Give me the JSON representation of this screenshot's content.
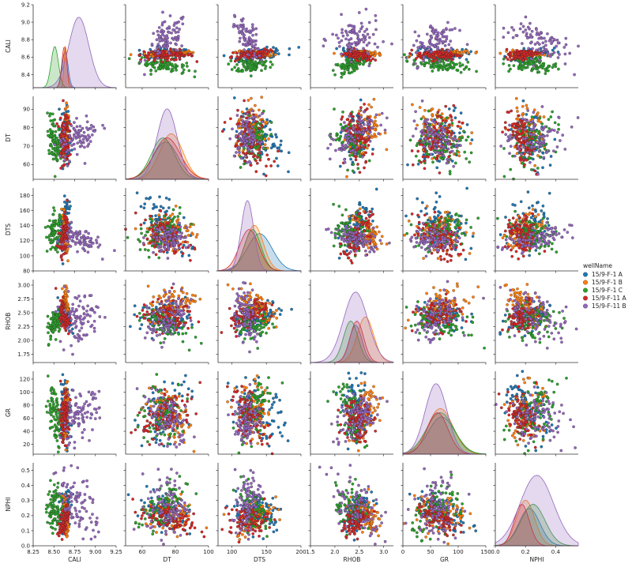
{
  "chart_data": {
    "type": "scatter",
    "kind": "pairplot",
    "variables": [
      "CALI",
      "DT",
      "DTS",
      "RHOB",
      "GR",
      "NPHI"
    ],
    "diagonal": "kde",
    "legend": {
      "title": "wellName",
      "placement": "right",
      "entries": [
        {
          "name": "15/9-F-1 A",
          "color": "#1f77b4"
        },
        {
          "name": "15/9-F-1 B",
          "color": "#ff7f0e"
        },
        {
          "name": "15/9-F-1 C",
          "color": "#2ca02c"
        },
        {
          "name": "15/9-F-11 A",
          "color": "#d62728"
        },
        {
          "name": "15/9-F-11 B",
          "color": "#9467bd"
        }
      ]
    },
    "axes": {
      "CALI": {
        "range": [
          8.25,
          9.25
        ],
        "ticks": [
          "8.25",
          "8.50",
          "8.75",
          "9.00",
          "9.25"
        ],
        "y_ticks": [
          "8.4",
          "8.6",
          "8.8",
          "9.0",
          "9.2"
        ],
        "y_tick_values": [
          8.4,
          8.6,
          8.8,
          9.0,
          9.2
        ],
        "x_tick_values": [
          8.25,
          8.5,
          8.75,
          9.0,
          9.25
        ],
        "y_range": [
          8.25,
          9.2
        ]
      },
      "DT": {
        "range": [
          50,
          100
        ],
        "ticks": [
          "60",
          "80",
          "100"
        ],
        "tick_values": [
          60,
          80,
          100
        ],
        "y_ticks": [
          "60",
          "70",
          "80",
          "90"
        ],
        "y_tick_values": [
          60,
          70,
          80,
          90
        ],
        "y_range": [
          52,
          97
        ]
      },
      "DTS": {
        "range": [
          80,
          200
        ],
        "ticks": [
          "100",
          "150",
          "200"
        ],
        "tick_values": [
          100,
          150,
          200
        ],
        "y_ticks": [
          "80",
          "100",
          "120",
          "140",
          "160",
          "180"
        ],
        "y_tick_values": [
          80,
          100,
          120,
          140,
          160,
          180
        ],
        "y_range": [
          80,
          190
        ]
      },
      "RHOB": {
        "range": [
          1.5,
          3.2
        ],
        "ticks": [
          "1.5",
          "2.0",
          "2.5",
          "3.0"
        ],
        "tick_values": [
          1.5,
          2.0,
          2.5,
          3.0
        ],
        "y_ticks": [
          "1.75",
          "2.00",
          "2.25",
          "2.50",
          "2.75",
          "3.00"
        ],
        "y_tick_values": [
          1.75,
          2.0,
          2.25,
          2.5,
          2.75,
          3.0
        ],
        "y_range": [
          1.6,
          3.1
        ]
      },
      "GR": {
        "range": [
          0,
          150
        ],
        "ticks": [
          "0",
          "50",
          "100",
          "150"
        ],
        "tick_values": [
          0,
          50,
          100,
          150
        ],
        "y_ticks": [
          "20",
          "40",
          "60",
          "80",
          "100",
          "120"
        ],
        "y_tick_values": [
          20,
          40,
          60,
          80,
          100,
          120
        ],
        "y_range": [
          5,
          132
        ]
      },
      "NPHI": {
        "range": [
          0.0,
          0.55
        ],
        "ticks": [
          "0.0",
          "0.2",
          "0.4"
        ],
        "tick_values": [
          0.0,
          0.2,
          0.4
        ],
        "y_ticks": [
          "0.0",
          "0.1",
          "0.2",
          "0.3",
          "0.4",
          "0.5"
        ],
        "y_tick_values": [
          0.0,
          0.1,
          0.2,
          0.3,
          0.4,
          0.5
        ],
        "y_range": [
          0.0,
          0.55
        ]
      }
    },
    "series_approx": {
      "15/9-F-1 A": {
        "CALI": [
          8.55,
          8.72
        ],
        "DT": [
          55,
          93
        ],
        "DTS": [
          95,
          185
        ],
        "RHOB": [
          2.1,
          2.75
        ],
        "GR": [
          10,
          130
        ],
        "NPHI": [
          0.05,
          0.4
        ]
      },
      "15/9-F-1 B": {
        "CALI": [
          8.6,
          8.68
        ],
        "DT": [
          60,
          95
        ],
        "DTS": [
          100,
          165
        ],
        "RHOB": [
          2.2,
          3.05
        ],
        "GR": [
          10,
          125
        ],
        "NPHI": [
          0.05,
          0.35
        ]
      },
      "15/9-F-1 C": {
        "CALI": [
          8.4,
          8.62
        ],
        "DT": [
          55,
          90
        ],
        "DTS": [
          100,
          160
        ],
        "RHOB": [
          1.95,
          2.7
        ],
        "GR": [
          5,
          130
        ],
        "NPHI": [
          0.05,
          0.45
        ]
      },
      "15/9-F-11 A": {
        "CALI": [
          8.55,
          8.7
        ],
        "DT": [
          55,
          95
        ],
        "DTS": [
          90,
          160
        ],
        "RHOB": [
          2.1,
          2.8
        ],
        "GR": [
          15,
          110
        ],
        "NPHI": [
          0.05,
          0.3
        ]
      },
      "15/9-F-11 B": {
        "CALI": [
          8.5,
          9.1
        ],
        "DT": [
          60,
          90
        ],
        "DTS": [
          100,
          145
        ],
        "RHOB": [
          1.8,
          3.05
        ],
        "GR": [
          10,
          110
        ],
        "NPHI": [
          0.0,
          0.55
        ]
      }
    }
  }
}
